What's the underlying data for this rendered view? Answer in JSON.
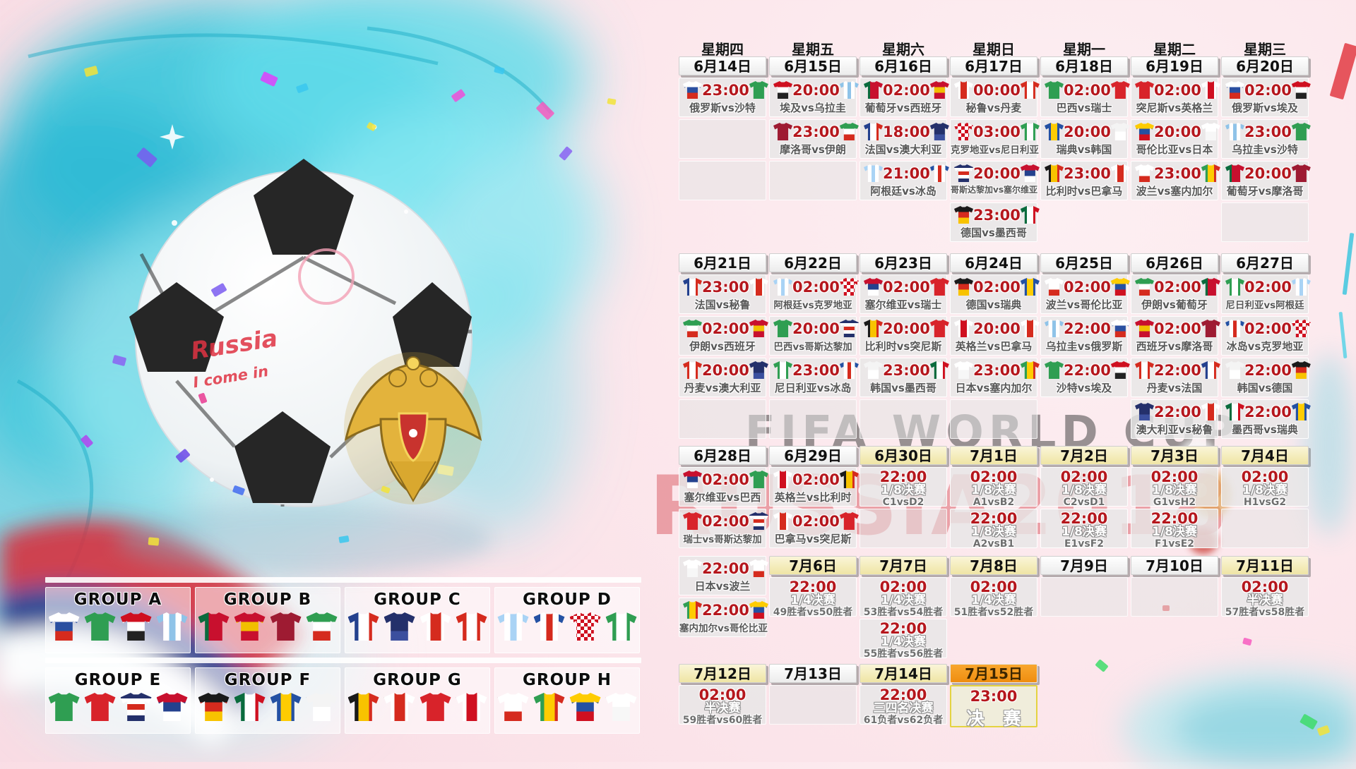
{
  "watermark": {
    "line1": "FIFA WORLD CUP",
    "line2": "RUSSIA2018"
  },
  "ball_script": {
    "line1": "Russia",
    "line2": "I come in"
  },
  "weekday_header": [
    "星期四",
    "星期五",
    "星期六",
    "星期日",
    "星期一",
    "星期二",
    "星期三"
  ],
  "sections": [
    {
      "dates": [
        {
          "label": "6月14日",
          "tone": "white"
        },
        {
          "label": "6月15日",
          "tone": "white"
        },
        {
          "label": "6月16日",
          "tone": "white"
        },
        {
          "label": "6月17日",
          "tone": "white"
        },
        {
          "label": "6月18日",
          "tone": "white"
        },
        {
          "label": "6月19日",
          "tone": "white"
        },
        {
          "label": "6月20日",
          "tone": "white"
        }
      ],
      "rows": [
        [
          {
            "k": "m",
            "t": "23:00",
            "n": "俄罗斯vs沙特"
          },
          {
            "k": "m",
            "t": "20:00",
            "n": "埃及vs乌拉圭"
          },
          {
            "k": "m",
            "t": "02:00",
            "n": "葡萄牙vs西班牙"
          },
          {
            "k": "m",
            "t": "00:00",
            "n": "秘鲁vs丹麦"
          },
          {
            "k": "m",
            "t": "02:00",
            "n": "巴西vs瑞士"
          },
          {
            "k": "m",
            "t": "02:00",
            "n": "突尼斯vs英格兰"
          },
          {
            "k": "m",
            "t": "02:00",
            "n": "俄罗斯vs埃及"
          }
        ],
        [
          {
            "k": "x"
          },
          {
            "k": "m",
            "t": "23:00",
            "n": "摩洛哥vs伊朗"
          },
          {
            "k": "m",
            "t": "18:00",
            "n": "法国vs澳大利亚"
          },
          {
            "k": "m",
            "t": "03:00",
            "n": "克罗地亚vs尼日利亚"
          },
          {
            "k": "m",
            "t": "20:00",
            "n": "瑞典vs韩国"
          },
          {
            "k": "m",
            "t": "20:00",
            "n": "哥伦比亚vs日本"
          },
          {
            "k": "m",
            "t": "23:00",
            "n": "乌拉圭vs沙特"
          }
        ],
        [
          {
            "k": "x"
          },
          {
            "k": "x"
          },
          {
            "k": "m",
            "t": "21:00",
            "n": "阿根廷vs冰岛"
          },
          {
            "k": "m",
            "t": "20:00",
            "n": "哥斯达黎加vs塞尔维亚"
          },
          {
            "k": "m",
            "t": "23:00",
            "n": "比利时vs巴拿马"
          },
          {
            "k": "m",
            "t": "23:00",
            "n": "波兰vs塞内加尔"
          },
          {
            "k": "m",
            "t": "20:00",
            "n": "葡萄牙vs摩洛哥"
          }
        ],
        [
          null,
          null,
          null,
          {
            "k": "m",
            "t": "23:00",
            "n": "德国vs墨西哥"
          },
          null,
          null,
          {
            "k": "x"
          }
        ]
      ]
    },
    {
      "dates": [
        {
          "label": "6月21日",
          "tone": "white"
        },
        {
          "label": "6月22日",
          "tone": "white"
        },
        {
          "label": "6月23日",
          "tone": "white"
        },
        {
          "label": "6月24日",
          "tone": "white"
        },
        {
          "label": "6月25日",
          "tone": "white"
        },
        {
          "label": "6月26日",
          "tone": "white"
        },
        {
          "label": "6月27日",
          "tone": "white"
        }
      ],
      "rows": [
        [
          {
            "k": "m",
            "t": "23:00",
            "n": "法国vs秘鲁"
          },
          {
            "k": "m",
            "t": "02:00",
            "n": "阿根廷vs克罗地亚"
          },
          {
            "k": "m",
            "t": "02:00",
            "n": "塞尔维亚vs瑞士"
          },
          {
            "k": "m",
            "t": "02:00",
            "n": "德国vs瑞典"
          },
          {
            "k": "m",
            "t": "02:00",
            "n": "波兰vs哥伦比亚"
          },
          {
            "k": "m",
            "t": "02:00",
            "n": "伊朗vs葡萄牙"
          },
          {
            "k": "m",
            "t": "02:00",
            "n": "尼日利亚vs阿根廷"
          }
        ],
        [
          {
            "k": "m",
            "t": "02:00",
            "n": "伊朗vs西班牙"
          },
          {
            "k": "m",
            "t": "20:00",
            "n": "巴西vs哥斯达黎加"
          },
          {
            "k": "m",
            "t": "20:00",
            "n": "比利时vs突尼斯"
          },
          {
            "k": "m",
            "t": "20:00",
            "n": "英格兰vs巴拿马"
          },
          {
            "k": "m",
            "t": "22:00",
            "n": "乌拉圭vs俄罗斯"
          },
          {
            "k": "m",
            "t": "02:00",
            "n": "西班牙vs摩洛哥"
          },
          {
            "k": "m",
            "t": "02:00",
            "n": "冰岛vs克罗地亚"
          }
        ],
        [
          {
            "k": "m",
            "t": "20:00",
            "n": "丹麦vs澳大利亚"
          },
          {
            "k": "m",
            "t": "23:00",
            "n": "尼日利亚vs冰岛"
          },
          {
            "k": "m",
            "t": "23:00",
            "n": "韩国vs墨西哥"
          },
          {
            "k": "m",
            "t": "23:00",
            "n": "日本vs塞内加尔"
          },
          {
            "k": "m",
            "t": "22:00",
            "n": "沙特vs埃及"
          },
          {
            "k": "m",
            "t": "22:00",
            "n": "丹麦vs法国"
          },
          {
            "k": "m",
            "t": "22:00",
            "n": "韩国vs德国"
          }
        ],
        [
          {
            "k": "x"
          },
          {
            "k": "x"
          },
          {
            "k": "x"
          },
          {
            "k": "x"
          },
          null,
          {
            "k": "m",
            "t": "22:00",
            "n": "澳大利亚vs秘鲁"
          },
          {
            "k": "m",
            "t": "22:00",
            "n": "墨西哥vs瑞典"
          }
        ]
      ]
    },
    {
      "dates": [
        {
          "label": "6月28日",
          "tone": "white"
        },
        {
          "label": "6月29日",
          "tone": "white"
        },
        {
          "label": "6月30日",
          "tone": "yellow"
        },
        {
          "label": "7月1日",
          "tone": "yellow"
        },
        {
          "label": "7月2日",
          "tone": "yellow"
        },
        {
          "label": "7月3日",
          "tone": "yellow"
        },
        {
          "label": "7月4日",
          "tone": "yellow"
        }
      ],
      "rows": [
        [
          {
            "k": "m",
            "t": "02:00",
            "n": "塞尔维亚vs巴西"
          },
          {
            "k": "m",
            "t": "02:00",
            "n": "英格兰vs比利时"
          },
          {
            "k": "q",
            "t": "22:00",
            "s": "1/8决赛",
            "p": "C1vsD2"
          },
          {
            "k": "q",
            "t": "02:00",
            "s": "1/8决赛",
            "p": "A1vsB2"
          },
          {
            "k": "q",
            "t": "02:00",
            "s": "1/8决赛",
            "p": "C2vsD1"
          },
          {
            "k": "q",
            "t": "02:00",
            "s": "1/8决赛",
            "p": "G1vsH2"
          },
          {
            "k": "q",
            "t": "02:00",
            "s": "1/8决赛",
            "p": "H1vsG2"
          }
        ],
        [
          {
            "k": "m",
            "t": "02:00",
            "n": "瑞士vs哥斯达黎加"
          },
          {
            "k": "m",
            "t": "02:00",
            "n": "巴拿马vs突尼斯"
          },
          {
            "k": "x"
          },
          {
            "k": "q",
            "t": "22:00",
            "s": "1/8决赛",
            "p": "A2vsB1"
          },
          {
            "k": "q",
            "t": "22:00",
            "s": "1/8决赛",
            "p": "E1vsF2"
          },
          {
            "k": "q",
            "t": "22:00",
            "s": "1/8决赛",
            "p": "F1vsE2"
          },
          {
            "k": "x"
          }
        ]
      ]
    },
    {
      "dates": [
        null,
        {
          "label": "7月6日",
          "tone": "yellow"
        },
        {
          "label": "7月7日",
          "tone": "yellow"
        },
        {
          "label": "7月8日",
          "tone": "yellow"
        },
        {
          "label": "7月9日",
          "tone": "white"
        },
        {
          "label": "7月10日",
          "tone": "white"
        },
        {
          "label": "7月11日",
          "tone": "yellow"
        }
      ],
      "rows": [
        [
          {
            "k": "m",
            "t": "22:00",
            "n": "日本vs波兰"
          },
          {
            "k": "q",
            "t": "22:00",
            "s": "1/4决赛",
            "p": "49胜者vs50胜者"
          },
          {
            "k": "q",
            "t": "02:00",
            "s": "1/4决赛",
            "p": "53胜者vs54胜者"
          },
          {
            "k": "q",
            "t": "02:00",
            "s": "1/4决赛",
            "p": "51胜者vs52胜者"
          },
          {
            "k": "x"
          },
          {
            "k": "x"
          },
          {
            "k": "q",
            "t": "02:00",
            "s": "半决赛",
            "p": "57胜者vs58胜者"
          }
        ],
        [
          {
            "k": "m",
            "t": "22:00",
            "n": "塞内加尔vs哥伦比亚"
          },
          null,
          {
            "k": "q",
            "t": "22:00",
            "s": "1/4决赛",
            "p": "55胜者vs56胜者"
          },
          null,
          null,
          null,
          null
        ]
      ]
    },
    {
      "dates": [
        {
          "label": "7月12日",
          "tone": "yellow"
        },
        {
          "label": "7月13日",
          "tone": "white"
        },
        {
          "label": "7月14日",
          "tone": "yellow"
        },
        {
          "label": "7月15日",
          "tone": "orange"
        },
        null,
        null,
        null
      ],
      "rows": [
        [
          {
            "k": "q",
            "t": "02:00",
            "s": "半决赛",
            "p": "59胜者vs60胜者"
          },
          {
            "k": "x"
          },
          {
            "k": "q",
            "t": "22:00",
            "s": "三四名决赛",
            "p": "61负者vs62负者"
          },
          {
            "k": "f",
            "t": "23:00",
            "s": "决 赛"
          },
          null,
          null,
          null
        ]
      ]
    }
  ],
  "groups": [
    {
      "name": "GROUP A",
      "teams": [
        "俄罗斯",
        "沙特",
        "埃及",
        "乌拉圭"
      ]
    },
    {
      "name": "GROUP B",
      "teams": [
        "葡萄牙",
        "西班牙",
        "摩洛哥",
        "伊朗"
      ]
    },
    {
      "name": "GROUP C",
      "teams": [
        "法国",
        "澳大利亚",
        "秘鲁",
        "丹麦"
      ]
    },
    {
      "name": "GROUP D",
      "teams": [
        "阿根廷",
        "冰岛",
        "克罗地亚",
        "尼日利亚"
      ]
    },
    {
      "name": "GROUP E",
      "teams": [
        "巴西",
        "瑞士",
        "哥斯达黎加",
        "塞尔维亚"
      ]
    },
    {
      "name": "GROUP F",
      "teams": [
        "德国",
        "墨西哥",
        "瑞典",
        "韩国"
      ]
    },
    {
      "name": "GROUP G",
      "teams": [
        "比利时",
        "巴拿马",
        "突尼斯",
        "英格兰"
      ]
    },
    {
      "name": "GROUP H",
      "teams": [
        "波兰",
        "塞内加尔",
        "哥伦比亚",
        "日本"
      ]
    }
  ],
  "team_colors": {
    "俄罗斯": {
      "dir": "v",
      "c": [
        "#ffffff",
        "#2a4fa0",
        "#d52b1e"
      ]
    },
    "沙特": {
      "dir": "v",
      "c": [
        "#2f9e52"
      ]
    },
    "埃及": {
      "dir": "v",
      "c": [
        "#cf1020",
        "#ffffff",
        "#222222"
      ]
    },
    "乌拉圭": {
      "dir": "h",
      "c": [
        "#8fc3e8",
        "#ffffff",
        "#8fc3e8",
        "#ffffff",
        "#8fc3e8"
      ]
    },
    "葡萄牙": {
      "dir": "h",
      "c": [
        "#0a6b3d",
        "#c8102e",
        "#c8102e"
      ]
    },
    "西班牙": {
      "dir": "v",
      "c": [
        "#c8102e",
        "#f1bf00",
        "#c8102e"
      ]
    },
    "摩洛哥": {
      "dir": "v",
      "c": [
        "#9e1b32"
      ]
    },
    "伊朗": {
      "dir": "v",
      "c": [
        "#2f9e52",
        "#ffffff",
        "#d52b1e"
      ]
    },
    "法国": {
      "dir": "h",
      "c": [
        "#24418e",
        "#ffffff",
        "#d52b1e"
      ]
    },
    "澳大利亚": {
      "dir": "v",
      "c": [
        "#24306b",
        "#24306b",
        "#3b4f9e"
      ]
    },
    "秘鲁": {
      "dir": "h",
      "c": [
        "#ffffff",
        "#d52b1e",
        "#ffffff"
      ]
    },
    "丹麦": {
      "dir": "h",
      "c": [
        "#d52b1e",
        "#ffffff",
        "#d52b1e"
      ]
    },
    "克罗地亚": {
      "pattern": "checker"
    },
    "尼日利亚": {
      "dir": "h",
      "c": [
        "#2f9e52",
        "#ffffff",
        "#2f9e52"
      ]
    },
    "阿根廷": {
      "dir": "h",
      "c": [
        "#a9d3f5",
        "#ffffff",
        "#a9d3f5",
        "#ffffff",
        "#a9d3f5"
      ]
    },
    "冰岛": {
      "dir": "h",
      "c": [
        "#2451a3",
        "#ffffff",
        "#d52b1e",
        "#ffffff",
        "#2451a3"
      ]
    },
    "巴西": {
      "dir": "v",
      "c": [
        "#2f9e52"
      ]
    },
    "瑞士": {
      "dir": "v",
      "c": [
        "#d8232a"
      ]
    },
    "哥斯达黎加": {
      "dir": "v",
      "c": [
        "#24306b",
        "#ffffff",
        "#d52b1e",
        "#ffffff",
        "#24306b"
      ]
    },
    "塞尔维亚": {
      "dir": "v",
      "c": [
        "#c8102e",
        "#24418e",
        "#ffffff"
      ]
    },
    "德国": {
      "dir": "v",
      "c": [
        "#1a1a1a",
        "#d52b1e",
        "#f8c300"
      ]
    },
    "墨西哥": {
      "dir": "h",
      "c": [
        "#0a6b3d",
        "#ffffff",
        "#cf1020"
      ]
    },
    "瑞典": {
      "dir": "h",
      "c": [
        "#2451a3",
        "#fecc02",
        "#2451a3"
      ]
    },
    "韩国": {
      "dir": "v",
      "c": [
        "#f4f4f4",
        "#ffffff"
      ]
    },
    "比利时": {
      "dir": "h",
      "c": [
        "#1a1a1a",
        "#f8c300",
        "#d52b1e"
      ]
    },
    "巴拿马": {
      "dir": "h",
      "c": [
        "#ffffff",
        "#d52b1e",
        "#ffffff"
      ]
    },
    "突尼斯": {
      "dir": "v",
      "c": [
        "#d8232a"
      ]
    },
    "英格兰": {
      "dir": "h",
      "c": [
        "#ffffff",
        "#cf1020",
        "#ffffff"
      ]
    },
    "波兰": {
      "dir": "v",
      "c": [
        "#ffffff",
        "#ffffff",
        "#d52b1e"
      ]
    },
    "塞内加尔": {
      "dir": "h",
      "c": [
        "#2f9e52",
        "#fecc02",
        "#d52b1e"
      ]
    },
    "哥伦比亚": {
      "dir": "v",
      "c": [
        "#fecc02",
        "#2451a3",
        "#cf1020"
      ]
    },
    "日本": {
      "dir": "v",
      "c": [
        "#ffffff",
        "#f7f7f7"
      ]
    }
  }
}
